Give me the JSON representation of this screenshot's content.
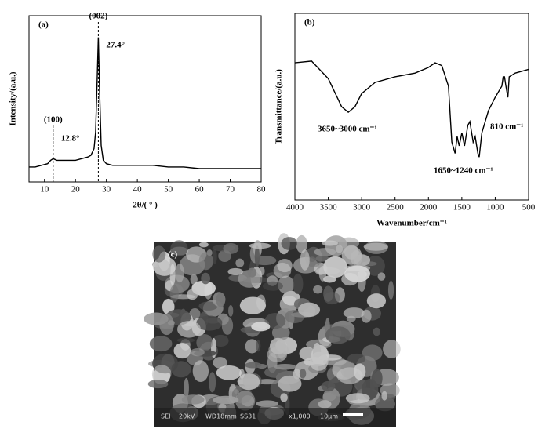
{
  "chart_data": [
    {
      "type": "line",
      "panel_label": "(a)",
      "x_label": "2θ/( ° )",
      "y_label": "Intensity/(a.u.)",
      "x": [
        5,
        7,
        9,
        11,
        12,
        12.8,
        14,
        16,
        18,
        20,
        22,
        24,
        25,
        26,
        26.5,
        27,
        27.4,
        27.8,
        28.3,
        29,
        30,
        32,
        35,
        40,
        45,
        50,
        55,
        60,
        65,
        70,
        75,
        80
      ],
      "values": [
        9,
        9,
        10,
        11,
        13,
        14,
        13,
        13,
        13,
        13,
        14,
        15,
        16,
        20,
        30,
        60,
        87,
        55,
        22,
        13,
        11,
        10,
        10,
        10,
        10,
        9,
        9,
        8,
        8,
        8,
        8,
        8
      ],
      "color": "#000000",
      "xlim": [
        5,
        80
      ],
      "xticks": [
        10,
        20,
        30,
        40,
        50,
        60,
        70,
        80
      ],
      "ylim": [
        0,
        100
      ],
      "peaks": [
        {
          "label": "(100)",
          "position_label": "12.8°",
          "x": 12.8
        },
        {
          "label": "(002)",
          "position_label": "27.4°",
          "x": 27.4
        }
      ]
    },
    {
      "type": "line",
      "panel_label": "(b)",
      "x_label": "Wavenumber/cm⁻¹",
      "y_label": "Transmittance/(a.u.)",
      "x": [
        4000,
        3750,
        3500,
        3300,
        3200,
        3100,
        3000,
        2800,
        2500,
        2200,
        2000,
        1900,
        1800,
        1700,
        1650,
        1600,
        1570,
        1540,
        1500,
        1460,
        1410,
        1380,
        1330,
        1300,
        1260,
        1240,
        1200,
        1100,
        1000,
        900,
        880,
        860,
        840,
        810,
        790,
        700,
        600,
        500
      ],
      "values": [
        73.5,
        74.4,
        65,
        50,
        47,
        50,
        57,
        63,
        66,
        68,
        71,
        73.5,
        72,
        61,
        31,
        25,
        34,
        29,
        36,
        29,
        40,
        42,
        31,
        34,
        25,
        23,
        36,
        48,
        55,
        61,
        66,
        66,
        61,
        55,
        66,
        68,
        69,
        70
      ],
      "color": "#000000",
      "xlim": [
        4000,
        500
      ],
      "xticks": [
        4000,
        3500,
        3000,
        2500,
        2000,
        1500,
        1000,
        500
      ],
      "ylim": [
        0,
        100
      ],
      "annotations": [
        "3650~3000 cm⁻¹",
        "1650~1240 cm⁻¹",
        "810 cm⁻¹"
      ]
    }
  ],
  "image": {
    "panel_label": "(c)",
    "footer": [
      "SEI",
      "20kV",
      "WD18mm",
      "SS31",
      "x1,000",
      "10μm"
    ]
  }
}
